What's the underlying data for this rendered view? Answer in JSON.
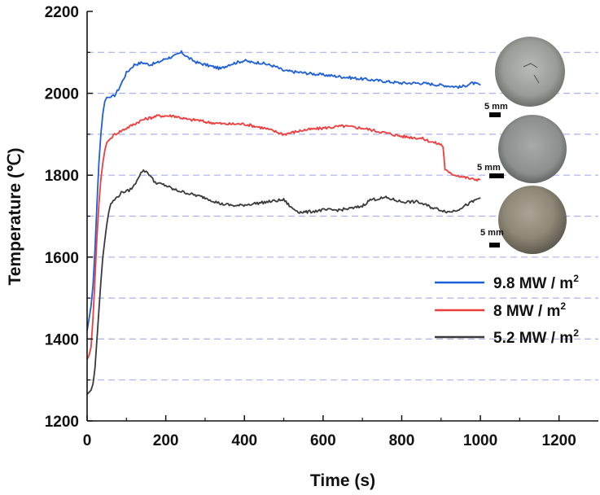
{
  "chart_data": {
    "type": "line",
    "xlabel": "Time (s)",
    "ylabel": "Temperature (℃)",
    "xlim": [
      0,
      1300
    ],
    "ylim": [
      1200,
      2200
    ],
    "xticks": [
      0,
      200,
      400,
      600,
      800,
      1000,
      1200
    ],
    "yticks": [
      1200,
      1400,
      1600,
      1800,
      2000,
      2200
    ],
    "grid_y": [
      1300,
      1400,
      1500,
      1600,
      1700,
      1800,
      1900,
      2000,
      2100
    ],
    "grid_color": "#aab0ee",
    "legend_position": "lower-right",
    "series": [
      {
        "name": "9.8 MW / m",
        "superscript": "2",
        "color": "#1f5fd6",
        "x": [
          0,
          5,
          10,
          15,
          20,
          25,
          30,
          35,
          40,
          45,
          50,
          60,
          70,
          80,
          90,
          100,
          110,
          120,
          140,
          160,
          180,
          200,
          220,
          240,
          260,
          280,
          300,
          320,
          340,
          360,
          380,
          400,
          420,
          440,
          460,
          480,
          500,
          550,
          600,
          650,
          700,
          750,
          800,
          850,
          900,
          950,
          980,
          1000
        ],
        "y": [
          1420,
          1450,
          1480,
          1530,
          1620,
          1730,
          1830,
          1900,
          1950,
          1980,
          1990,
          1990,
          1995,
          2010,
          2030,
          2050,
          2060,
          2070,
          2075,
          2070,
          2075,
          2085,
          2090,
          2100,
          2085,
          2075,
          2070,
          2065,
          2060,
          2070,
          2075,
          2080,
          2075,
          2075,
          2070,
          2065,
          2055,
          2050,
          2045,
          2040,
          2035,
          2030,
          2025,
          2025,
          2020,
          2015,
          2025,
          2020
        ]
      },
      {
        "name": "8 MW / m",
        "superscript": "2",
        "color": "#f03c3c",
        "x": [
          0,
          5,
          10,
          15,
          20,
          25,
          30,
          35,
          40,
          45,
          50,
          60,
          70,
          80,
          100,
          120,
          140,
          160,
          180,
          200,
          220,
          240,
          260,
          280,
          300,
          350,
          400,
          450,
          500,
          550,
          600,
          650,
          700,
          750,
          800,
          850,
          880,
          900,
          905,
          910,
          920,
          940,
          960,
          980,
          1000
        ],
        "y": [
          1350,
          1360,
          1380,
          1450,
          1550,
          1650,
          1730,
          1790,
          1830,
          1860,
          1880,
          1890,
          1900,
          1905,
          1915,
          1925,
          1935,
          1940,
          1945,
          1945,
          1945,
          1940,
          1935,
          1935,
          1930,
          1925,
          1925,
          1915,
          1900,
          1910,
          1915,
          1920,
          1915,
          1905,
          1895,
          1890,
          1880,
          1875,
          1870,
          1815,
          1805,
          1800,
          1795,
          1790,
          1790
        ]
      },
      {
        "name": "5.2 MW / m",
        "superscript": "2",
        "color": "#3a3a3a",
        "x": [
          0,
          5,
          10,
          15,
          20,
          25,
          30,
          35,
          40,
          45,
          50,
          55,
          60,
          70,
          80,
          90,
          100,
          110,
          120,
          130,
          140,
          150,
          160,
          170,
          180,
          200,
          220,
          240,
          260,
          280,
          300,
          340,
          380,
          420,
          460,
          500,
          520,
          540,
          560,
          600,
          640,
          680,
          700,
          720,
          760,
          800,
          840,
          880,
          920,
          940,
          960,
          1000
        ],
        "y": [
          1265,
          1270,
          1275,
          1290,
          1330,
          1400,
          1470,
          1540,
          1600,
          1640,
          1680,
          1710,
          1730,
          1740,
          1750,
          1760,
          1760,
          1765,
          1775,
          1795,
          1810,
          1810,
          1800,
          1785,
          1780,
          1775,
          1765,
          1760,
          1755,
          1750,
          1745,
          1730,
          1725,
          1730,
          1735,
          1740,
          1720,
          1710,
          1710,
          1715,
          1715,
          1720,
          1725,
          1740,
          1745,
          1735,
          1735,
          1720,
          1710,
          1715,
          1725,
          1745
        ]
      }
    ]
  },
  "inset_photos": [
    {
      "scale_label": "5 mm"
    },
    {
      "scale_label": "5 mm"
    },
    {
      "scale_label": "5 mm"
    }
  ]
}
